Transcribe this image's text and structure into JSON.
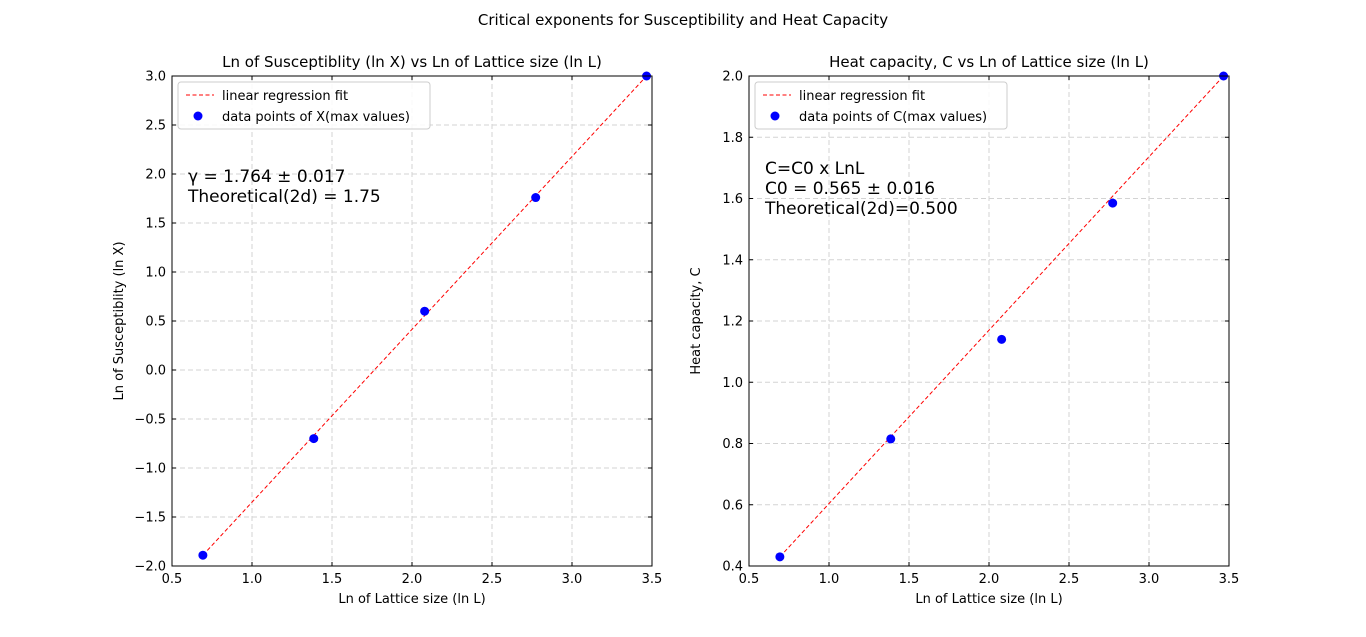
{
  "figure": {
    "suptitle": "Critical exponents for Susceptibility and Heat Capacity"
  },
  "colors": {
    "fit_line": "#ff0000",
    "points": "#0000ff",
    "grid": "#d3d3d3",
    "axes": "#000000"
  },
  "chart_data": [
    {
      "type": "scatter",
      "title": "Ln of Susceptiblity (ln X) vs Ln of Lattice size (ln L)",
      "xlabel": "Ln of Lattice size (ln L)",
      "ylabel": "Ln of Susceptiblity (ln X)",
      "xlim": [
        0.5,
        3.5
      ],
      "ylim": [
        -2.0,
        3.0
      ],
      "xticks": [
        0.5,
        1.0,
        1.5,
        2.0,
        2.5,
        3.0,
        3.5
      ],
      "xtick_labels": [
        "0.5",
        "1.0",
        "1.5",
        "2.0",
        "2.5",
        "3.0",
        "3.5"
      ],
      "yticks": [
        -2.0,
        -1.5,
        -1.0,
        -0.5,
        0.0,
        0.5,
        1.0,
        1.5,
        2.0,
        2.5,
        3.0
      ],
      "ytick_labels": [
        "−2.0",
        "−1.5",
        "−1.0",
        "−0.5",
        "0.0",
        "0.5",
        "1.0",
        "1.5",
        "2.0",
        "2.5",
        "3.0"
      ],
      "grid": true,
      "legend_position": "top-left",
      "series": [
        {
          "name": "linear regression fit",
          "kind": "line",
          "style": "dashed",
          "x": [
            0.693,
            3.466
          ],
          "y": [
            -1.89,
            3.0
          ]
        },
        {
          "name": "data points of X(max values)",
          "kind": "points",
          "x": [
            0.693,
            1.386,
            2.079,
            2.773,
            3.466
          ],
          "y": [
            -1.89,
            -0.7,
            0.6,
            1.76,
            3.0
          ]
        }
      ],
      "annotation": [
        "γ = 1.764 ± 0.017",
        "Theoretical(2d) = 1.75"
      ]
    },
    {
      "type": "scatter",
      "title": "Heat capacity, C vs Ln of Lattice size (ln L)",
      "xlabel": "Ln of Lattice size (ln L)",
      "ylabel": "Heat capacity, C",
      "xlim": [
        0.5,
        3.5
      ],
      "ylim": [
        0.4,
        2.0
      ],
      "xticks": [
        0.5,
        1.0,
        1.5,
        2.0,
        2.5,
        3.0,
        3.5
      ],
      "xtick_labels": [
        "0.5",
        "1.0",
        "1.5",
        "2.0",
        "2.5",
        "3.0",
        "3.5"
      ],
      "yticks": [
        0.4,
        0.6,
        0.8,
        1.0,
        1.2,
        1.4,
        1.6,
        1.8,
        2.0
      ],
      "ytick_labels": [
        "0.4",
        "0.6",
        "0.8",
        "1.0",
        "1.2",
        "1.4",
        "1.6",
        "1.8",
        "2.0"
      ],
      "grid": true,
      "legend_position": "top-left",
      "series": [
        {
          "name": "linear regression fit",
          "kind": "line",
          "style": "dashed",
          "x": [
            0.693,
            3.466
          ],
          "y": [
            0.43,
            2.0
          ]
        },
        {
          "name": "data points of C(max values)",
          "kind": "points",
          "x": [
            0.693,
            1.386,
            2.079,
            2.773,
            3.466
          ],
          "y": [
            0.43,
            0.815,
            1.14,
            1.585,
            2.0
          ]
        }
      ],
      "annotation": [
        "C=C0 x LnL",
        "C0 = 0.565 ± 0.016",
        "Theoretical(2d)=0.500"
      ]
    }
  ]
}
